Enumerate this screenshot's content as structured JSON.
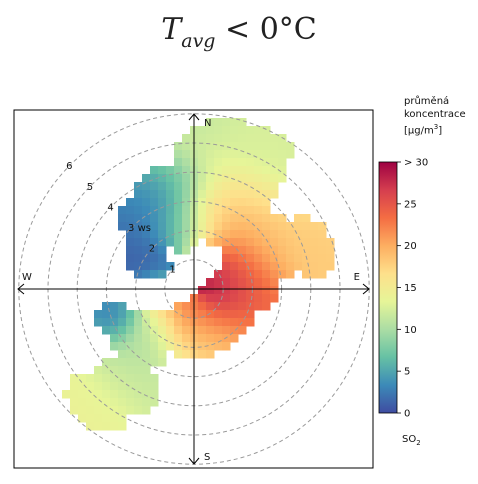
{
  "title": {
    "main": "T",
    "subscript": "avg",
    "relation": "< 0°C"
  },
  "chart_data": {
    "type": "heatmap",
    "subtype": "polar-wind-rose",
    "directions": {
      "north": "N",
      "south": "S",
      "east": "E",
      "west": "W"
    },
    "radial_axis": {
      "unit_label": "ws",
      "ticks": [
        1,
        2,
        3,
        4,
        5,
        6
      ],
      "tick_labels": [
        "1",
        "2",
        "3 ws",
        "4",
        "5",
        "6"
      ],
      "max": 6,
      "grid": "dashed circles"
    },
    "legend": {
      "title_lines": [
        "průměná",
        "koncentrace",
        "[µg/m",
        "3",
        "]"
      ],
      "ticks": [
        0,
        5,
        10,
        15,
        20,
        25,
        30
      ],
      "tick_labels": [
        "0",
        "5",
        "10",
        "15",
        "20",
        "25",
        "> 30"
      ],
      "range": [
        0,
        30
      ],
      "pollutant": "SO",
      "pollutant_sub": "2",
      "placement": "right",
      "colors": [
        "#3f4ca1",
        "#3c8ab8",
        "#66c1a4",
        "#abdda4",
        "#e6f598",
        "#fee08b",
        "#fdae61",
        "#f46d43",
        "#d53e4f",
        "#9e0142"
      ]
    },
    "blobs": [
      {
        "dir": 15,
        "ws": 4.2,
        "w": 2.0,
        "spread": 30,
        "value": 11
      },
      {
        "dir": 25,
        "ws": 5.6,
        "w": 0.8,
        "spread": 14,
        "value": 13
      },
      {
        "dir": 20,
        "ws": 2.9,
        "w": 1.6,
        "spread": 26,
        "value": 22
      },
      {
        "dir": 60,
        "ws": 3.1,
        "w": 1.1,
        "spread": 26,
        "value": 18
      },
      {
        "dir": 70,
        "ws": 4.2,
        "w": 0.9,
        "spread": 18,
        "value": 18
      },
      {
        "dir": 75,
        "ws": 2.0,
        "w": 1.2,
        "spread": 40,
        "value": 24
      },
      {
        "dir": 120,
        "ws": 1.4,
        "w": 1.0,
        "spread": 40,
        "value": 26
      },
      {
        "dir": 140,
        "ws": 0.9,
        "w": 0.9,
        "spread": 60,
        "value": 30
      },
      {
        "dir": 330,
        "ws": 2.9,
        "w": 1.1,
        "spread": 26,
        "value": 2
      },
      {
        "dir": 345,
        "ws": 3.6,
        "w": 0.9,
        "spread": 22,
        "value": 4
      },
      {
        "dir": 350,
        "ws": 2.1,
        "w": 0.9,
        "spread": 26,
        "value": 8
      },
      {
        "dir": 305,
        "ws": 1.9,
        "w": 1.0,
        "spread": 22,
        "value": 1
      },
      {
        "dir": 250,
        "ws": 2.9,
        "w": 0.7,
        "spread": 14,
        "value": 2
      },
      {
        "dir": 225,
        "ws": 2.4,
        "w": 1.3,
        "spread": 26,
        "value": 10
      },
      {
        "dir": 215,
        "ws": 3.9,
        "w": 1.1,
        "spread": 20,
        "value": 12
      },
      {
        "dir": 220,
        "ws": 5.2,
        "w": 0.9,
        "spread": 16,
        "value": 14
      },
      {
        "dir": 180,
        "ws": 1.4,
        "w": 1.2,
        "spread": 40,
        "value": 14
      },
      {
        "dir": 160,
        "ws": 1.6,
        "w": 0.9,
        "spread": 30,
        "value": 18
      }
    ]
  }
}
